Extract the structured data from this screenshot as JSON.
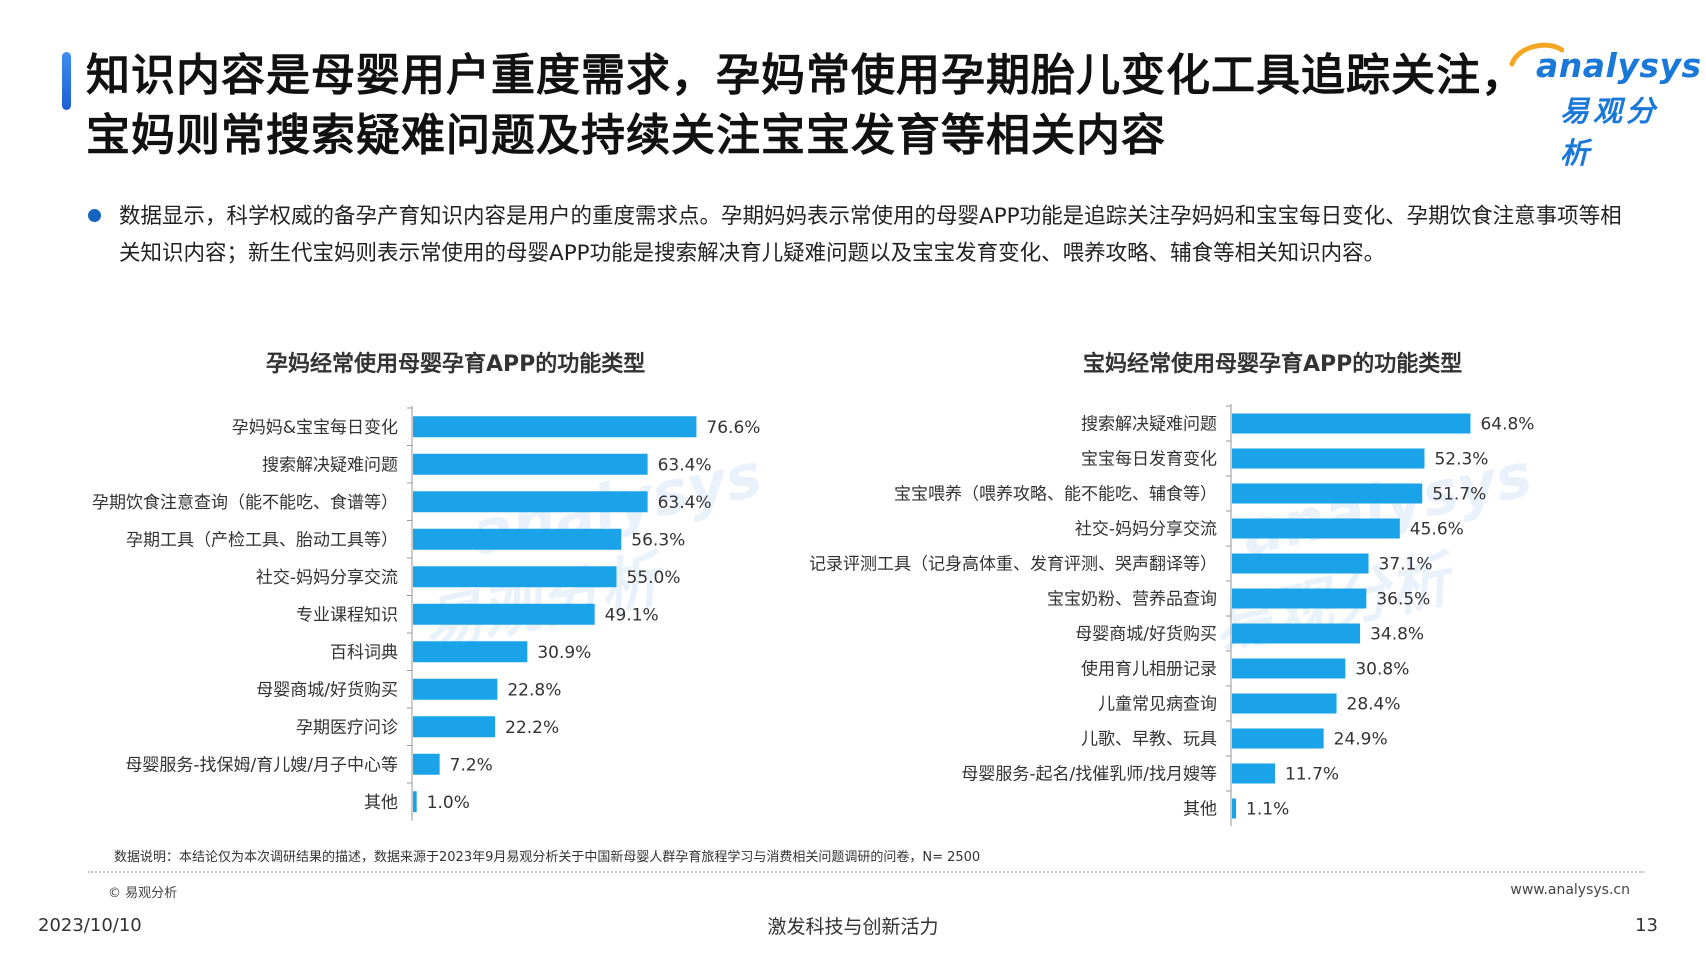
{
  "header": {
    "title": "知识内容是母婴用户重度需求，孕妈常使用孕期胎儿变化工具追踪关注，宝妈则常搜索疑难问题及持续关注宝宝发育等相关内容"
  },
  "logo": {
    "word": "analysys",
    "cn": "易观分析"
  },
  "watermark": {
    "word": "analysys",
    "cn": "易观分析"
  },
  "bullet": {
    "text": "数据显示，科学权威的备孕产育知识内容是用户的重度需求点。孕期妈妈表示常使用的母婴APP功能是追踪关注孕妈妈和宝宝每日变化、孕期饮食注意事项等相关知识内容；新生代宝妈则表示常使用的母婴APP功能是搜索解决育儿疑难问题以及宝宝发育变化、喂养攻略、辅食等相关知识内容。"
  },
  "chart_data": [
    {
      "type": "bar",
      "orientation": "horizontal",
      "title": "孕妈经常使用母婴孕育APP的功能类型",
      "categories": [
        "孕妈妈&宝宝每日变化",
        "搜索解决疑难问题",
        "孕期饮食注意查询（能不能吃、食谱等）",
        "孕期工具（产检工具、胎动工具等）",
        "社交-妈妈分享交流",
        "专业课程知识",
        "百科词典",
        "母婴商城/好货购买",
        "孕期医疗问诊",
        "母婴服务-找保姆/育儿嫂/月子中心等",
        "其他"
      ],
      "values": [
        76.6,
        63.4,
        63.4,
        56.3,
        55.0,
        49.1,
        30.9,
        22.8,
        22.2,
        7.2,
        1.0
      ],
      "value_labels": [
        "76.6%",
        "63.4%",
        "63.4%",
        "56.3%",
        "55.0%",
        "49.1%",
        "30.9%",
        "22.8%",
        "22.2%",
        "7.2%",
        "1.0%"
      ],
      "unit": "%",
      "xlim": [
        0,
        100
      ],
      "color": "#1aa3e8"
    },
    {
      "type": "bar",
      "orientation": "horizontal",
      "title": "宝妈经常使用母婴孕育APP的功能类型",
      "categories": [
        "搜索解决疑难问题",
        "宝宝每日发育变化",
        "宝宝喂养（喂养攻略、能不能吃、辅食等）",
        "社交-妈妈分享交流",
        "记录评测工具（记身高体重、发育评测、哭声翻译等）",
        "宝宝奶粉、营养品查询",
        "母婴商城/好货购买",
        "使用育儿相册记录",
        "儿童常见病查询",
        "儿歌、早教、玩具",
        "母婴服务-起名/找催乳师/找月嫂等",
        "其他"
      ],
      "values": [
        64.8,
        52.3,
        51.7,
        45.6,
        37.1,
        36.5,
        34.8,
        30.8,
        28.4,
        24.9,
        11.7,
        1.1
      ],
      "value_labels": [
        "64.8%",
        "52.3%",
        "51.7%",
        "45.6%",
        "37.1%",
        "36.5%",
        "34.8%",
        "30.8%",
        "28.4%",
        "24.9%",
        "11.7%",
        "1.1%"
      ],
      "unit": "%",
      "xlim": [
        0,
        100
      ],
      "color": "#1aa3e8"
    }
  ],
  "footer": {
    "note": "数据说明：本结论仅为本次调研结果的描述，数据来源于2023年9月易观分析关于中国新母婴人群孕育旅程学习与消费相关问题调研的问卷，N= 2500",
    "copyright": "© 易观分析",
    "website": "www.analysys.cn",
    "date": "2023/10/10",
    "slogan": "激发科技与创新活力",
    "page": "13"
  }
}
